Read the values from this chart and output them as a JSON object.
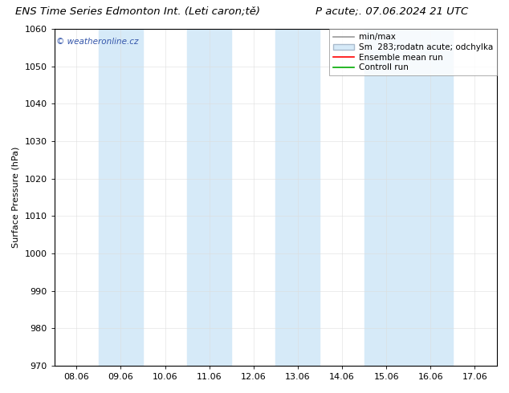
{
  "title_left": "ENS Time Series Edmonton Int. (Leti caron;tě)",
  "title_right": "P acute;. 07.06.2024 21 UTC",
  "ylabel": "Surface Pressure (hPa)",
  "ylim": [
    970,
    1060
  ],
  "yticks": [
    970,
    980,
    990,
    1000,
    1010,
    1020,
    1030,
    1040,
    1050,
    1060
  ],
  "xlabels": [
    "08.06",
    "09.06",
    "10.06",
    "11.06",
    "12.06",
    "13.06",
    "14.06",
    "15.06",
    "16.06",
    "17.06"
  ],
  "x_values": [
    0,
    1,
    2,
    3,
    4,
    5,
    6,
    7,
    8,
    9
  ],
  "shaded_columns": [
    1,
    3,
    5,
    7,
    8
  ],
  "shade_color": "#d6eaf8",
  "plot_bg_color": "#ffffff",
  "fig_bg_color": "#ffffff",
  "legend_items": [
    {
      "label": "min/max",
      "type": "line",
      "color": "#999999",
      "lw": 1.2
    },
    {
      "label": "Sm  283;rodatn acute; odchylka",
      "type": "patch",
      "facecolor": "#d6eaf8",
      "edgecolor": "#aabbcc"
    },
    {
      "label": "Ensemble mean run",
      "type": "line",
      "color": "#ff0000",
      "lw": 1.2
    },
    {
      "label": "Controll run",
      "type": "line",
      "color": "#00aa00",
      "lw": 1.2
    }
  ],
  "watermark": "© weatheronline.cz",
  "title_fontsize": 9.5,
  "axis_label_fontsize": 8,
  "tick_fontsize": 8,
  "legend_fontsize": 7.5,
  "grid_color": "#dddddd",
  "grid_lw": 0.4,
  "spine_color": "#000000",
  "spine_lw": 0.8
}
